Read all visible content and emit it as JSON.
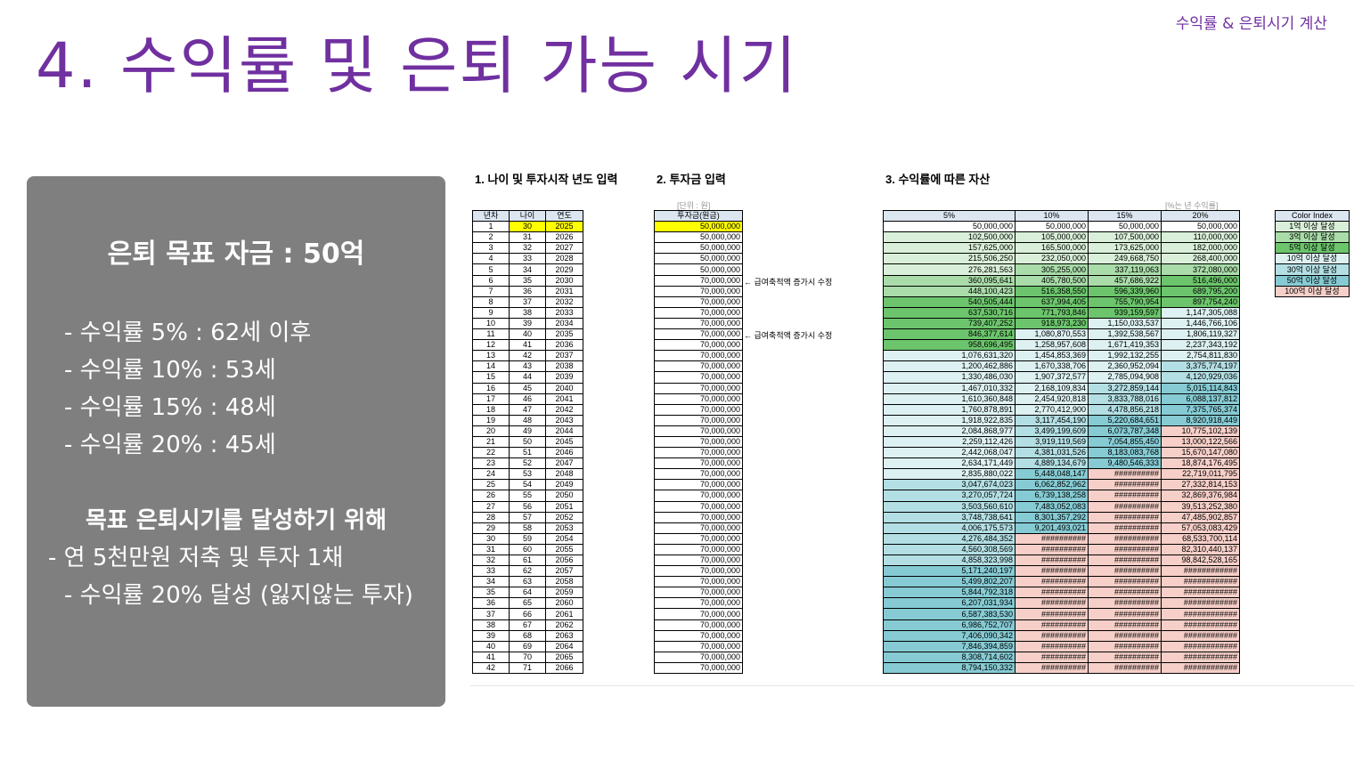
{
  "slide": {
    "title": "4. 수익률 및 은퇴 가능 시기",
    "top_right_label": "수익률 & 은퇴시기 계산"
  },
  "panel": {
    "goal": "은퇴 목표 자금 : 50억",
    "lines": [
      "- 수익률 5% : 62세 이후",
      "- 수익률 10% : 53세",
      "- 수익률 15% : 48세",
      "- 수익률 20% : 45세"
    ],
    "subtitle": "목표 은퇴시기를 달성하기 위해",
    "actions": [
      "- 연 5천만원 저축 및 투자 1채",
      "- 수익률 20% 달성 (잃지않는 투자)"
    ]
  },
  "sheet": {
    "section1": "1. 나이 및 투자시작 년도 입력",
    "section2": "2. 투자금 입력",
    "section3": "3. 수익률에 따른 자산",
    "unit_label": "[단위 : 원]",
    "rate_note": "[%는 년 수익률]",
    "table1_headers": [
      "년차",
      "나이",
      "연도"
    ],
    "table2_header": "투자금(원금)",
    "table3_headers": [
      "5%",
      "10%",
      "15%",
      "20%"
    ],
    "note_label": "← 급여축적액 증가시 수정",
    "note_rows": [
      6,
      11
    ],
    "highlight_color": "#ffff00",
    "start_age": 30,
    "start_year": 2025,
    "investments": [
      "50,000,000",
      "50,000,000",
      "50,000,000",
      "50,000,000",
      "50,000,000",
      "70,000,000",
      "70,000,000",
      "70,000,000",
      "70,000,000",
      "70,000,000",
      "70,000,000",
      "70,000,000",
      "70,000,000",
      "70,000,000",
      "70,000,000",
      "70,000,000",
      "70,000,000",
      "70,000,000",
      "70,000,000",
      "70,000,000",
      "70,000,000",
      "70,000,000",
      "70,000,000",
      "70,000,000",
      "70,000,000",
      "70,000,000",
      "70,000,000",
      "70,000,000",
      "70,000,000",
      "70,000,000",
      "70,000,000",
      "70,000,000",
      "70,000,000",
      "70,000,000",
      "70,000,000",
      "70,000,000",
      "70,000,000",
      "70,000,000",
      "70,000,000",
      "70,000,000",
      "70,000,000",
      "70,000,000"
    ],
    "assets_5": [
      "50,000,000",
      "102,500,000",
      "157,625,000",
      "215,506,250",
      "276,281,563",
      "360,095,641",
      "448,100,423",
      "540,505,444",
      "637,530,716",
      "739,407,252",
      "846,377,614",
      "958,696,495",
      "1,076,631,320",
      "1,200,462,886",
      "1,330,486,030",
      "1,467,010,332",
      "1,610,360,848",
      "1,760,878,891",
      "1,918,922,835",
      "2,084,868,977",
      "2,259,112,426",
      "2,442,068,047",
      "2,634,171,449",
      "2,835,880,022",
      "3,047,674,023",
      "3,270,057,724",
      "3,503,560,610",
      "3,748,738,641",
      "4,006,175,573",
      "4,276,484,352",
      "4,560,308,569",
      "4,858,323,998",
      "5,171,240,197",
      "5,499,802,207",
      "5,844,792,318",
      "6,207,031,934",
      "6,587,383,530",
      "6,986,752,707",
      "7,406,090,342",
      "7,846,394,859",
      "8,308,714,602",
      "8,794,150,332"
    ],
    "assets_10": [
      "50,000,000",
      "105,000,000",
      "165,500,000",
      "232,050,000",
      "305,255,000",
      "405,780,500",
      "516,358,550",
      "637,994,405",
      "771,793,846",
      "918,973,230",
      "1,080,870,553",
      "1,258,957,608",
      "1,454,853,369",
      "1,670,338,706",
      "1,907,372,577",
      "2,168,109,834",
      "2,454,920,818",
      "2,770,412,900",
      "3,117,454,190",
      "3,499,199,609",
      "3,919,119,569",
      "4,381,031,526",
      "4,889,134,679",
      "5,448,048,147",
      "6,062,852,962",
      "6,739,138,258",
      "7,483,052,083",
      "8,301,357,292",
      "9,201,493,021",
      "##########",
      "##########",
      "##########",
      "##########",
      "##########",
      "##########",
      "##########",
      "##########",
      "##########",
      "##########",
      "##########",
      "##########",
      "##########"
    ],
    "assets_15": [
      "50,000,000",
      "107,500,000",
      "173,625,000",
      "249,668,750",
      "337,119,063",
      "457,686,922",
      "596,339,960",
      "755,790,954",
      "939,159,597",
      "1,150,033,537",
      "1,392,538,567",
      "1,671,419,353",
      "1,992,132,255",
      "2,360,952,094",
      "2,785,094,908",
      "3,272,859,144",
      "3,833,788,016",
      "4,478,856,218",
      "5,220,684,651",
      "6,073,787,348",
      "7,054,855,450",
      "8,183,083,768",
      "9,480,546,333",
      "##########",
      "##########",
      "##########",
      "##########",
      "##########",
      "##########",
      "##########",
      "##########",
      "##########",
      "##########",
      "##########",
      "##########",
      "##########",
      "##########",
      "##########",
      "##########",
      "##########",
      "##########",
      "##########"
    ],
    "assets_20": [
      "50,000,000",
      "110,000,000",
      "182,000,000",
      "268,400,000",
      "372,080,000",
      "516,496,000",
      "689,795,200",
      "897,754,240",
      "1,147,305,088",
      "1,446,766,106",
      "1,806,119,327",
      "2,237,343,192",
      "2,754,811,830",
      "3,375,774,197",
      "4,120,929,036",
      "5,015,114,843",
      "6,088,137,812",
      "7,375,765,374",
      "8,920,918,449",
      "10,775,102,139",
      "13,000,122,566",
      "15,670,147,080",
      "18,874,176,495",
      "22,719,011,795",
      "27,332,814,153",
      "32,869,376,984",
      "39,513,252,380",
      "47,485,902,857",
      "57,053,083,429",
      "68,533,700,114",
      "82,310,440,137",
      "98,842,528,165",
      "############",
      "############",
      "############",
      "############",
      "############",
      "############",
      "############",
      "############",
      "############",
      "############"
    ],
    "legend": {
      "title": "Color Index",
      "items": [
        {
          "label": "1억 이상 달성",
          "color": "#d9efd9"
        },
        {
          "label": "3억 이상 달성",
          "color": "#a9dca9"
        },
        {
          "label": "5억 이상 달성",
          "color": "#6cc56c"
        },
        {
          "label": "10억 이상 달성",
          "color": "#ddf0f2"
        },
        {
          "label": "30억 이상 달성",
          "color": "#b3dfe4"
        },
        {
          "label": "50억 이상 달성",
          "color": "#86cbd4"
        },
        {
          "label": "100억 이상 달성",
          "color": "#f6cfc8"
        }
      ]
    },
    "header_color": "#dce6f1"
  }
}
